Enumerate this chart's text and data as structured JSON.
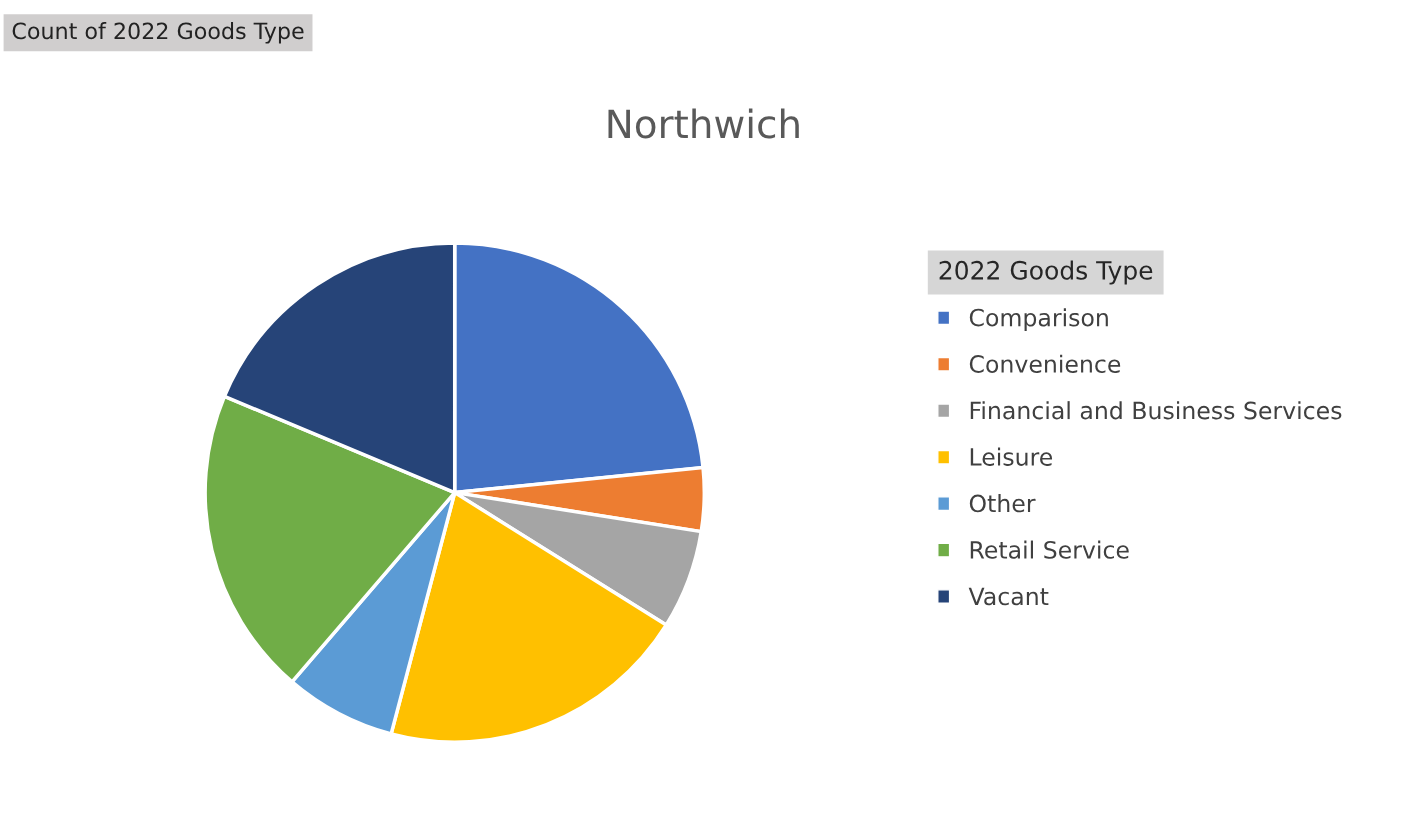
{
  "chart_data": {
    "type": "pie",
    "title": "Northwich",
    "legend_title": "2022 Goods Type",
    "legend": "right",
    "annotations": [
      "Count of 2022 Goods Type"
    ],
    "categories": [
      "Comparison",
      "Convenience",
      "Financial and Business Services",
      "Leisure",
      "Other",
      "Retail Service",
      "Vacant"
    ],
    "values": [
      23.4,
      4.1,
      6.4,
      20.2,
      7.2,
      20.0,
      18.7
    ],
    "colors": [
      "#4472c4",
      "#ed7d31",
      "#a5a5a5",
      "#ffc000",
      "#5b9bd5",
      "#70ad47",
      "#264478"
    ]
  }
}
